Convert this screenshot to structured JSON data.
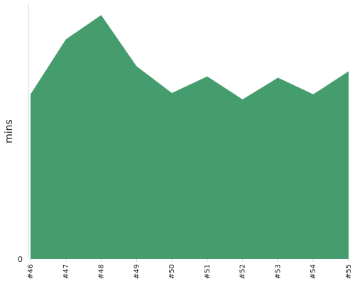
{
  "chart_data": {
    "type": "area",
    "categories": [
      "#46",
      "#47",
      "#48",
      "#49",
      "#50",
      "#51",
      "#52",
      "#53",
      "#54",
      "#55"
    ],
    "series": [
      {
        "values": [
          12.9,
          17.2,
          19.1,
          15.1,
          13.0,
          14.3,
          12.5,
          14.2,
          12.9,
          14.7
        ]
      }
    ],
    "title": "",
    "xlabel": "",
    "ylabel": "mins",
    "ylim": [
      0,
      20
    ],
    "y_ticks": [
      {
        "value": 0,
        "label": "0"
      }
    ],
    "grid": false,
    "legend": "none",
    "colors": {
      "fill": "#459c6d",
      "axis": "#d0d0d0",
      "text": "#222222"
    }
  }
}
